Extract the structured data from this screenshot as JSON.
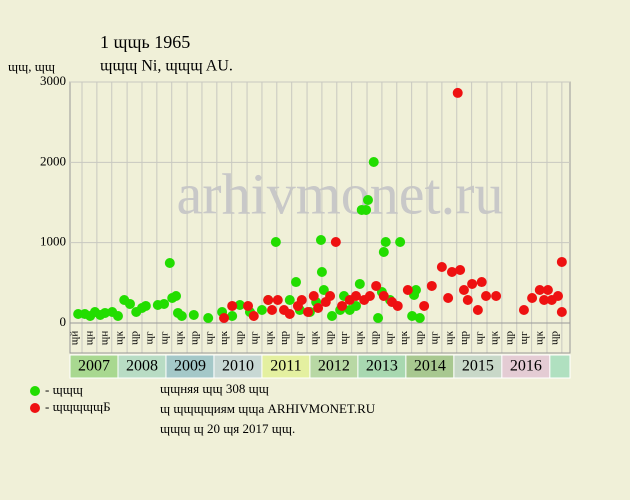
{
  "chart_data": {
    "type": "scatter",
    "title": "1 ɰɰь 1965",
    "subtitle": "ɰɰɰ Ni, ɰɰɰ AU.",
    "y_label": "ɰɰ, ɰɰ",
    "watermark": "arhivmonet.ru",
    "xlim": [
      2007,
      2017.42
    ],
    "ylim": [
      0,
      3000
    ],
    "yticks": [
      0,
      1000,
      2000,
      3000
    ],
    "grid": true,
    "xticks": [
      {
        "value": 2007.25,
        "label": "ɰй"
      },
      {
        "value": 2007.56,
        "label": "ɰн"
      },
      {
        "value": 2007.87,
        "label": "ɰн"
      },
      {
        "value": 2008.19,
        "label": "ɰк"
      },
      {
        "value": 2008.5,
        "label": "ɰр"
      },
      {
        "value": 2008.81,
        "label": "ɰг"
      },
      {
        "value": 2009.12,
        "label": "ɰг"
      },
      {
        "value": 2009.44,
        "label": "ɰк"
      },
      {
        "value": 2009.75,
        "label": "ɰр"
      },
      {
        "value": 2010.06,
        "label": "ɰг"
      },
      {
        "value": 2010.37,
        "label": "ɰк"
      },
      {
        "value": 2010.69,
        "label": "ɰр"
      },
      {
        "value": 2011.0,
        "label": "ɰг"
      },
      {
        "value": 2011.31,
        "label": "ɰк"
      },
      {
        "value": 2011.62,
        "label": "ɰр"
      },
      {
        "value": 2011.94,
        "label": "ɰг"
      },
      {
        "value": 2012.25,
        "label": "ɰк"
      },
      {
        "value": 2012.56,
        "label": "ɰр"
      },
      {
        "value": 2012.87,
        "label": "ɰг"
      },
      {
        "value": 2013.19,
        "label": "ɰк"
      },
      {
        "value": 2013.5,
        "label": "ɰр"
      },
      {
        "value": 2013.81,
        "label": "ɰг"
      },
      {
        "value": 2014.12,
        "label": "ɰк"
      },
      {
        "value": 2014.44,
        "label": "ɰр"
      },
      {
        "value": 2014.75,
        "label": "ɰг"
      },
      {
        "value": 2015.06,
        "label": "ɰк"
      },
      {
        "value": 2015.37,
        "label": "ɰр"
      },
      {
        "value": 2015.69,
        "label": "ɰг"
      },
      {
        "value": 2016.0,
        "label": "ɰк"
      },
      {
        "value": 2016.31,
        "label": "ɰр"
      },
      {
        "value": 2016.62,
        "label": "ɰг"
      },
      {
        "value": 2016.94,
        "label": "ɰк"
      },
      {
        "value": 2017.25,
        "label": "ɰр"
      }
    ],
    "year_bands": [
      {
        "year": 2007,
        "color": "#a8d890"
      },
      {
        "year": 2008,
        "color": "#b8dcc4"
      },
      {
        "year": 2009,
        "color": "#a4c8c8"
      },
      {
        "year": 2010,
        "color": "#c8d8d4"
      },
      {
        "year": 2011,
        "color": "#e4f0a0"
      },
      {
        "year": 2012,
        "color": "#b8d8a4"
      },
      {
        "year": 2013,
        "color": "#a8d8b0"
      },
      {
        "year": 2014,
        "color": "#a8c890"
      },
      {
        "year": 2015,
        "color": "#c8d8c8"
      },
      {
        "year": 2016,
        "color": "#e4ccd4"
      }
    ],
    "series": [
      {
        "name": "- ɰɰɰ",
        "color": "#22dd00",
        "x": [
          2007.17,
          2007.31,
          2007.42,
          2007.52,
          2007.63,
          2007.73,
          2007.88,
          2008.0,
          2008.13,
          2008.25,
          2008.38,
          2008.5,
          2008.58,
          2008.83,
          2008.96,
          2009.08,
          2009.13,
          2009.21,
          2009.25,
          2009.33,
          2009.58,
          2009.88,
          2010.17,
          2010.38,
          2010.54,
          2010.75,
          2011.0,
          2011.13,
          2011.29,
          2011.58,
          2011.71,
          2011.79,
          2012.0,
          2012.13,
          2012.23,
          2012.25,
          2012.29,
          2012.46,
          2012.63,
          2012.71,
          2012.83,
          2012.96,
          2013.04,
          2013.08,
          2013.17,
          2013.21,
          2013.33,
          2013.42,
          2013.5,
          2013.54,
          2013.58,
          2013.67,
          2013.88,
          2014.13,
          2014.17,
          2014.21,
          2014.29
        ],
        "values": [
          112,
          112,
          87,
          137,
          100,
          125,
          137,
          87,
          286,
          237,
          137,
          187,
          212,
          224,
          237,
          747,
          311,
          336,
          125,
          87,
          100,
          62,
          137,
          87,
          224,
          137,
          162,
          286,
          1008,
          286,
          510,
          162,
          137,
          261,
          1033,
          635,
          411,
          87,
          162,
          336,
          162,
          212,
          486,
          1407,
          1407,
          1531,
          2004,
          62,
          386,
          884,
          1008,
          286,
          1008,
          87,
          349,
          411,
          62
        ]
      },
      {
        "name": "- ɰɰɰɰɰБ",
        "color": "#ee1111",
        "x": [
          2010.21,
          2010.38,
          2010.71,
          2010.83,
          2011.13,
          2011.21,
          2011.33,
          2011.46,
          2011.58,
          2011.75,
          2011.83,
          2011.96,
          2012.08,
          2012.17,
          2012.33,
          2012.42,
          2012.54,
          2012.67,
          2012.83,
          2012.96,
          2013.13,
          2013.25,
          2013.38,
          2013.54,
          2013.71,
          2013.83,
          2014.04,
          2014.38,
          2014.54,
          2014.75,
          2014.88,
          2014.96,
          2015.08,
          2015.13,
          2015.21,
          2015.29,
          2015.38,
          2015.5,
          2015.58,
          2015.67,
          2015.88,
          2016.46,
          2016.63,
          2016.79,
          2016.88,
          2016.96,
          2017.04,
          2017.17,
          2017.25,
          2017.25
        ],
        "values": [
          62,
          212,
          212,
          87,
          286,
          162,
          286,
          162,
          112,
          212,
          286,
          137,
          336,
          187,
          261,
          336,
          1008,
          212,
          286,
          336,
          286,
          336,
          461,
          336,
          261,
          212,
          411,
          212,
          461,
          697,
          311,
          635,
          2864,
          660,
          411,
          286,
          486,
          162,
          510,
          336,
          336,
          162,
          311,
          411,
          286,
          411,
          286,
          336,
          760,
          137
        ]
      }
    ],
    "notes": [
      "ɰɰняя ɰɰ 308 ɰɰ",
      "ɰ ɰɰɰɰиям ɰɰа ARHIVMONET.RU",
      "ɰɰɰ ɰ 20 ɰя 2017 ɰɰ."
    ]
  }
}
